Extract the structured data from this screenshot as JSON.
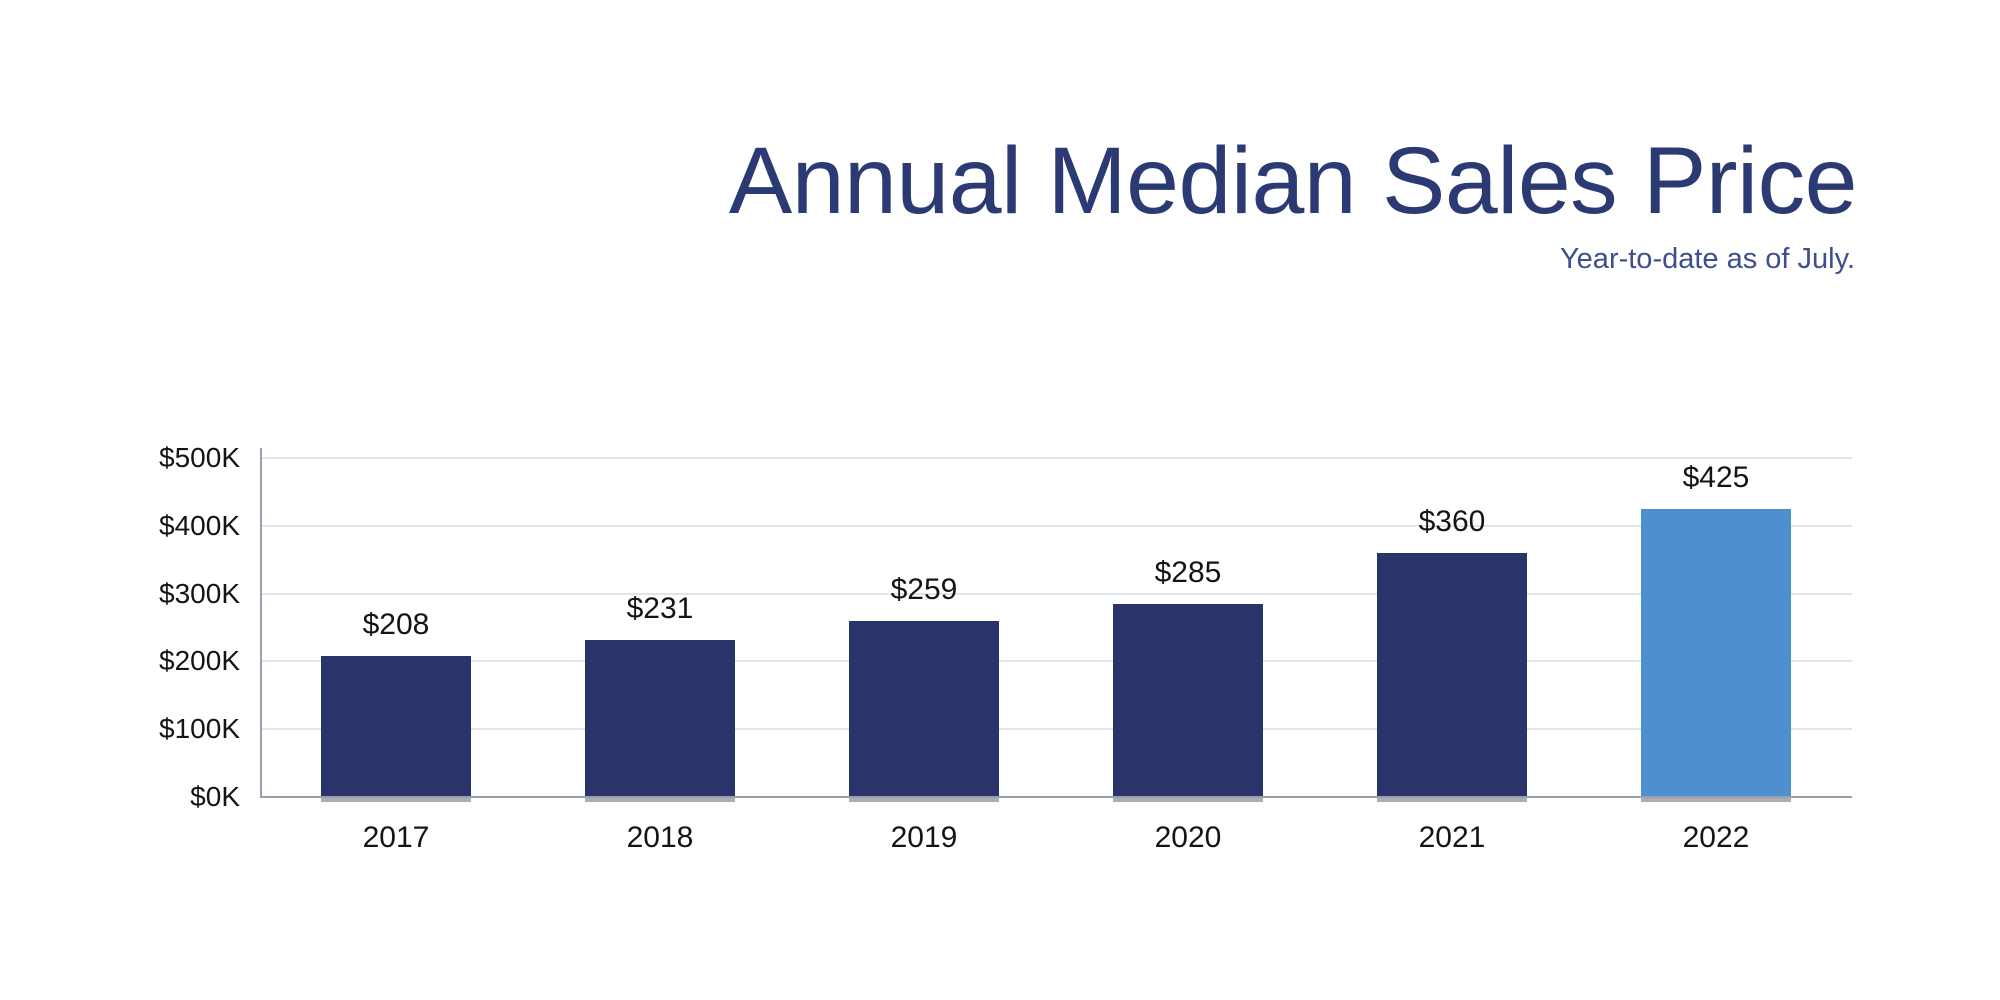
{
  "header": {
    "title": "Annual Median Sales Price",
    "subtitle": "Year-to-date as of July."
  },
  "colors": {
    "title": "#2b3a72",
    "subtitle": "#3f4e8c",
    "bar": "#2b336b",
    "bar_highlight": "#4e90ce",
    "grid": "#dfe5ee",
    "axis": "#9aa0aa",
    "label": "#141414"
  },
  "chart_data": {
    "type": "bar",
    "title": "Annual Median Sales Price",
    "subtitle": "Year-to-date as of July.",
    "categories": [
      "2017",
      "2018",
      "2019",
      "2020",
      "2021",
      "2022"
    ],
    "values": [
      208,
      231,
      259,
      285,
      360,
      425
    ],
    "value_labels": [
      "$208",
      "$231",
      "$259",
      "$285",
      "$360",
      "$425"
    ],
    "highlight_index": 5,
    "xlabel": "",
    "ylabel": "",
    "ylim": [
      0,
      500
    ],
    "y_ticks": [
      {
        "value": 0,
        "label": "$0K"
      },
      {
        "value": 100,
        "label": "$100K"
      },
      {
        "value": 200,
        "label": "$200K"
      },
      {
        "value": 300,
        "label": "$300K"
      },
      {
        "value": 400,
        "label": "$400K"
      },
      {
        "value": 500,
        "label": "$500K"
      }
    ],
    "grid": true,
    "legend": "none"
  }
}
